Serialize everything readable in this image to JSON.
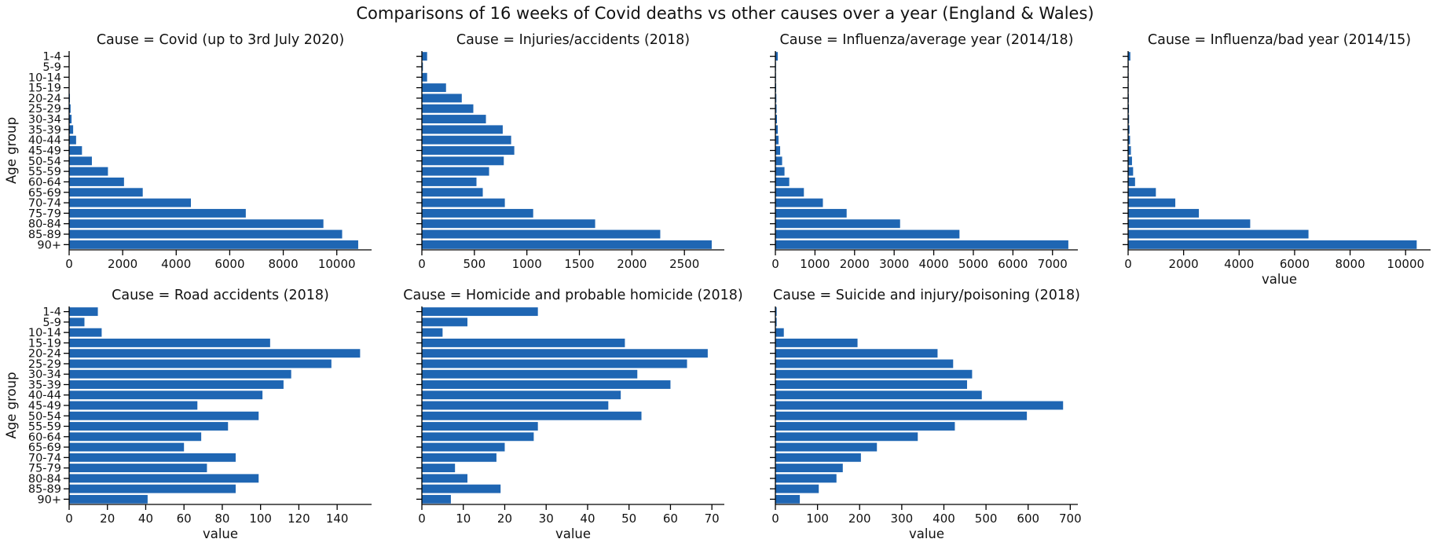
{
  "figure": {
    "title": "Comparisons of 16 weeks of Covid deaths vs other causes over a year (England & Wales)",
    "bar_color": "#1f66b3"
  },
  "chart_data": [
    {
      "type": "bar",
      "orientation": "horizontal",
      "title": "Cause = Covid (up to 3rd July 2020)",
      "ylabel": "Age group",
      "xlabel": "",
      "categories": [
        "1-4",
        "5-9",
        "10-14",
        "15-19",
        "20-24",
        "25-29",
        "30-34",
        "35-39",
        "40-44",
        "45-49",
        "50-54",
        "55-59",
        "60-64",
        "65-69",
        "70-74",
        "75-79",
        "80-84",
        "85-89",
        "90+"
      ],
      "values": [
        5,
        3,
        5,
        15,
        30,
        55,
        90,
        150,
        260,
        480,
        850,
        1450,
        2050,
        2750,
        4550,
        6600,
        9500,
        10200,
        10800
      ],
      "xlim": [
        0,
        11300
      ],
      "xticks": [
        0,
        2000,
        4000,
        6000,
        8000,
        10000
      ]
    },
    {
      "type": "bar",
      "orientation": "horizontal",
      "title": "Cause = Injuries/accidents (2018)",
      "ylabel": "",
      "xlabel": "",
      "categories": [
        "1-4",
        "5-9",
        "10-14",
        "15-19",
        "20-24",
        "25-29",
        "30-34",
        "35-39",
        "40-44",
        "45-49",
        "50-54",
        "55-59",
        "60-64",
        "65-69",
        "70-74",
        "75-79",
        "80-84",
        "85-89",
        "90+"
      ],
      "values": [
        50,
        10,
        50,
        230,
        380,
        490,
        610,
        770,
        850,
        880,
        780,
        640,
        520,
        580,
        790,
        1060,
        1650,
        2270,
        2760
      ],
      "xlim": [
        0,
        2880
      ],
      "xticks": [
        0,
        500,
        1000,
        1500,
        2000,
        2500
      ]
    },
    {
      "type": "bar",
      "orientation": "horizontal",
      "title": "Cause = Influenza/average year (2014/18)",
      "ylabel": "",
      "xlabel": "",
      "categories": [
        "1-4",
        "5-9",
        "10-14",
        "15-19",
        "20-24",
        "25-29",
        "30-34",
        "35-39",
        "40-44",
        "45-49",
        "50-54",
        "55-59",
        "60-64",
        "65-69",
        "70-74",
        "75-79",
        "80-84",
        "85-89",
        "90+"
      ],
      "values": [
        60,
        15,
        15,
        20,
        25,
        30,
        40,
        60,
        80,
        120,
        170,
        230,
        350,
        720,
        1200,
        1800,
        3150,
        4650,
        7400
      ],
      "xlim": [
        0,
        7640
      ],
      "xticks": [
        0,
        1000,
        2000,
        3000,
        4000,
        5000,
        6000,
        7000
      ]
    },
    {
      "type": "bar",
      "orientation": "horizontal",
      "title": "Cause = Influenza/bad year (2014/15)",
      "ylabel": "",
      "xlabel": "value",
      "categories": [
        "1-4",
        "5-9",
        "10-14",
        "15-19",
        "20-24",
        "25-29",
        "30-34",
        "35-39",
        "40-44",
        "45-49",
        "50-54",
        "55-59",
        "60-64",
        "65-69",
        "70-74",
        "75-79",
        "80-84",
        "85-89",
        "90+"
      ],
      "values": [
        80,
        20,
        20,
        20,
        25,
        30,
        35,
        50,
        70,
        100,
        140,
        180,
        250,
        1000,
        1700,
        2550,
        4400,
        6500,
        10400
      ],
      "xlim": [
        0,
        10900
      ],
      "xticks": [
        0,
        2000,
        4000,
        6000,
        8000,
        10000
      ]
    },
    {
      "type": "bar",
      "orientation": "horizontal",
      "title": "Cause = Road accidents (2018)",
      "ylabel": "Age group",
      "xlabel": "value",
      "categories": [
        "1-4",
        "5-9",
        "10-14",
        "15-19",
        "20-24",
        "25-29",
        "30-34",
        "35-39",
        "40-44",
        "45-49",
        "50-54",
        "55-59",
        "60-64",
        "65-69",
        "70-74",
        "75-79",
        "80-84",
        "85-89",
        "90+"
      ],
      "values": [
        15,
        8,
        17,
        105,
        152,
        137,
        116,
        112,
        101,
        67,
        99,
        83,
        69,
        60,
        87,
        72,
        99,
        87,
        41
      ],
      "xlim": [
        0,
        158
      ],
      "xticks": [
        0,
        20,
        40,
        60,
        80,
        100,
        120,
        140
      ]
    },
    {
      "type": "bar",
      "orientation": "horizontal",
      "title": "Cause = Homicide and probable homicide (2018)",
      "ylabel": "",
      "xlabel": "value",
      "categories": [
        "1-4",
        "5-9",
        "10-14",
        "15-19",
        "20-24",
        "25-29",
        "30-34",
        "35-39",
        "40-44",
        "45-49",
        "50-54",
        "55-59",
        "60-64",
        "65-69",
        "70-74",
        "75-79",
        "80-84",
        "85-89",
        "90+"
      ],
      "values": [
        28,
        11,
        5,
        49,
        69,
        64,
        52,
        60,
        48,
        45,
        53,
        28,
        27,
        20,
        18,
        8,
        11,
        19,
        7
      ],
      "xlim": [
        0,
        73
      ],
      "xticks": [
        0,
        10,
        20,
        30,
        40,
        50,
        60,
        70
      ]
    },
    {
      "type": "bar",
      "orientation": "horizontal",
      "title": "Cause = Suicide and injury/poisoning (2018)",
      "ylabel": "",
      "xlabel": "value",
      "categories": [
        "1-4",
        "5-9",
        "10-14",
        "15-19",
        "20-24",
        "25-29",
        "30-34",
        "35-39",
        "40-44",
        "45-49",
        "50-54",
        "55-59",
        "60-64",
        "65-69",
        "70-74",
        "75-79",
        "80-84",
        "85-89",
        "90+"
      ],
      "values": [
        3,
        3,
        20,
        195,
        385,
        422,
        467,
        455,
        490,
        683,
        597,
        426,
        338,
        241,
        203,
        160,
        145,
        103,
        58
      ],
      "xlim": [
        0,
        718
      ],
      "xticks": [
        0,
        100,
        200,
        300,
        400,
        500,
        600,
        700
      ]
    }
  ]
}
